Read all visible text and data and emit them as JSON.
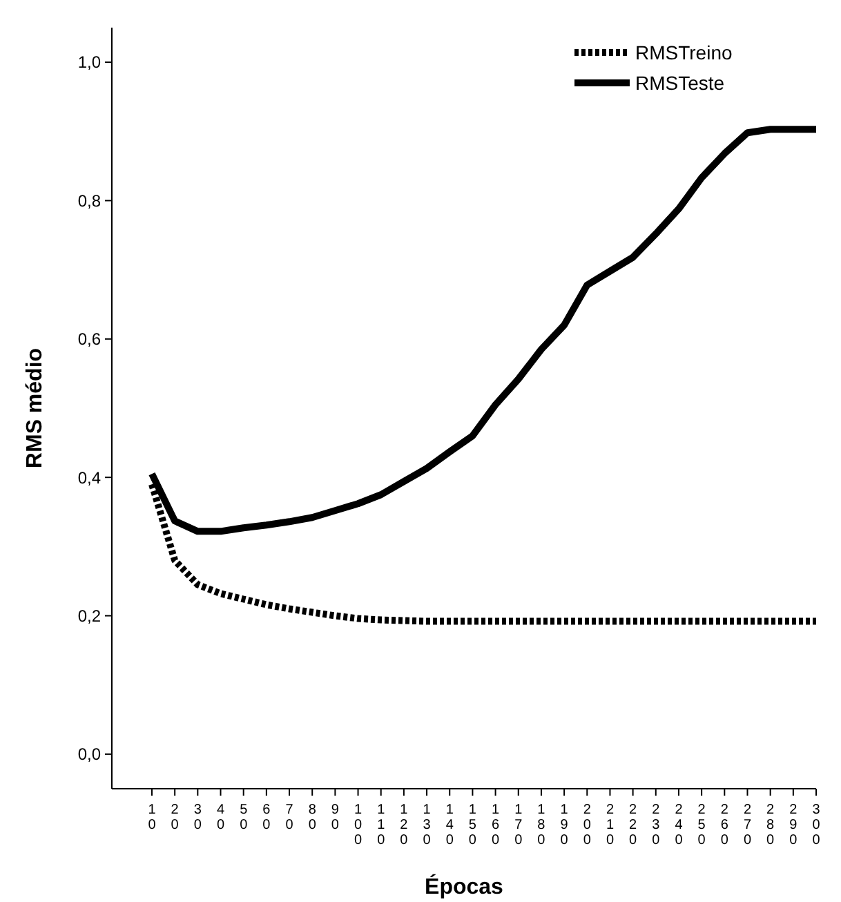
{
  "chart_data": {
    "type": "line",
    "xlabel": "Épocas",
    "ylabel": "RMS médio",
    "categories": [
      "10",
      "20",
      "30",
      "40",
      "50",
      "60",
      "70",
      "80",
      "90",
      "100",
      "110",
      "120",
      "130",
      "140",
      "150",
      "160",
      "170",
      "180",
      "190",
      "200",
      "210",
      "220",
      "230",
      "240",
      "250",
      "260",
      "270",
      "280",
      "290",
      "300"
    ],
    "series": [
      {
        "name": "RMSTreino",
        "color": "#000000",
        "line_style": "dotted",
        "values": [
          0.39,
          0.28,
          0.245,
          0.232,
          0.224,
          0.216,
          0.21,
          0.205,
          0.2,
          0.196,
          0.194,
          0.193,
          0.192,
          0.192,
          0.192,
          0.192,
          0.192,
          0.192,
          0.192,
          0.192,
          0.192,
          0.192,
          0.192,
          0.192,
          0.192,
          0.192,
          0.192,
          0.192,
          0.192,
          0.192
        ]
      },
      {
        "name": "RMSTeste",
        "color": "#000000",
        "line_style": "solid",
        "values": [
          0.405,
          0.337,
          0.322,
          0.322,
          0.327,
          0.331,
          0.336,
          0.342,
          0.352,
          0.362,
          0.375,
          0.394,
          0.413,
          0.437,
          0.46,
          0.505,
          0.542,
          0.585,
          0.62,
          0.678,
          0.698,
          0.718,
          0.752,
          0.788,
          0.833,
          0.868,
          0.898,
          0.903,
          0.903,
          0.903
        ]
      }
    ],
    "ylim": [
      -0.05,
      1.05
    ],
    "yticks": [
      {
        "value": 0,
        "label": "0,0"
      },
      {
        "value": 0.2,
        "label": "0,2"
      },
      {
        "value": 0.4,
        "label": "0,4"
      },
      {
        "value": 0.6,
        "label": "0,6"
      },
      {
        "value": 0.8,
        "label": "0,8"
      },
      {
        "value": 1,
        "label": "1,0"
      }
    ],
    "grid": false,
    "legend": "top right"
  }
}
